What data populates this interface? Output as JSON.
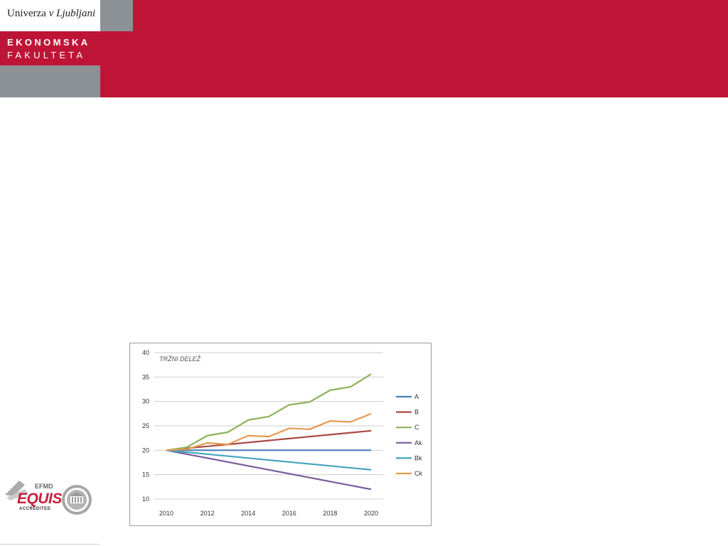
{
  "header": {
    "university_plain": "Univerza ",
    "university_italic": "v Ljubljani",
    "faculty_line1": "EKONOMSKA",
    "faculty_line2": "FAKULTETA",
    "brand_red": "#be1537",
    "brand_grey": "#8c9196"
  },
  "accreditation": {
    "efmd": "EFMD",
    "equis": "EQUIS",
    "accredited": "ACCREDITED"
  },
  "chart_data": {
    "type": "line",
    "title": "TRŽNI DELEŽ",
    "xlabel": "",
    "ylabel": "",
    "x": [
      2010,
      2011,
      2012,
      2013,
      2014,
      2015,
      2016,
      2017,
      2018,
      2019,
      2020
    ],
    "x_ticks": [
      "2010",
      "2012",
      "2014",
      "2016",
      "2018",
      "2020"
    ],
    "ylim": [
      10,
      40
    ],
    "y_ticks": [
      "10",
      "15",
      "20",
      "25",
      "30",
      "35",
      "40"
    ],
    "grid": "horizontal",
    "legend_position": "right",
    "series": [
      {
        "name": "A",
        "color": "#4a7db8",
        "values": [
          20,
          20,
          20,
          20,
          20,
          20,
          20,
          20,
          20,
          20,
          20
        ]
      },
      {
        "name": "B",
        "color": "#a94a45",
        "values": [
          20,
          20.4,
          20.8,
          21.2,
          21.6,
          22,
          22.4,
          22.8,
          23.2,
          23.6,
          24
        ]
      },
      {
        "name": "C",
        "color": "#8cb257",
        "values": [
          20,
          20.6,
          23,
          23.7,
          26.2,
          26.9,
          29.3,
          29.9,
          32.3,
          33,
          35.6
        ]
      },
      {
        "name": "Ak",
        "color": "#7a5b9a",
        "values": [
          20,
          19.2,
          18.4,
          17.6,
          16.8,
          16,
          15.2,
          14.4,
          13.6,
          12.8,
          12
        ]
      },
      {
        "name": "Bk",
        "color": "#43a4bd",
        "values": [
          20,
          19.6,
          19.2,
          18.8,
          18.4,
          18,
          17.6,
          17.2,
          16.8,
          16.4,
          16
        ]
      },
      {
        "name": "Ck",
        "color": "#e59a50",
        "values": [
          20,
          20.2,
          21.5,
          21.2,
          23,
          22.8,
          24.5,
          24.3,
          26,
          25.8,
          27.5
        ]
      }
    ]
  }
}
